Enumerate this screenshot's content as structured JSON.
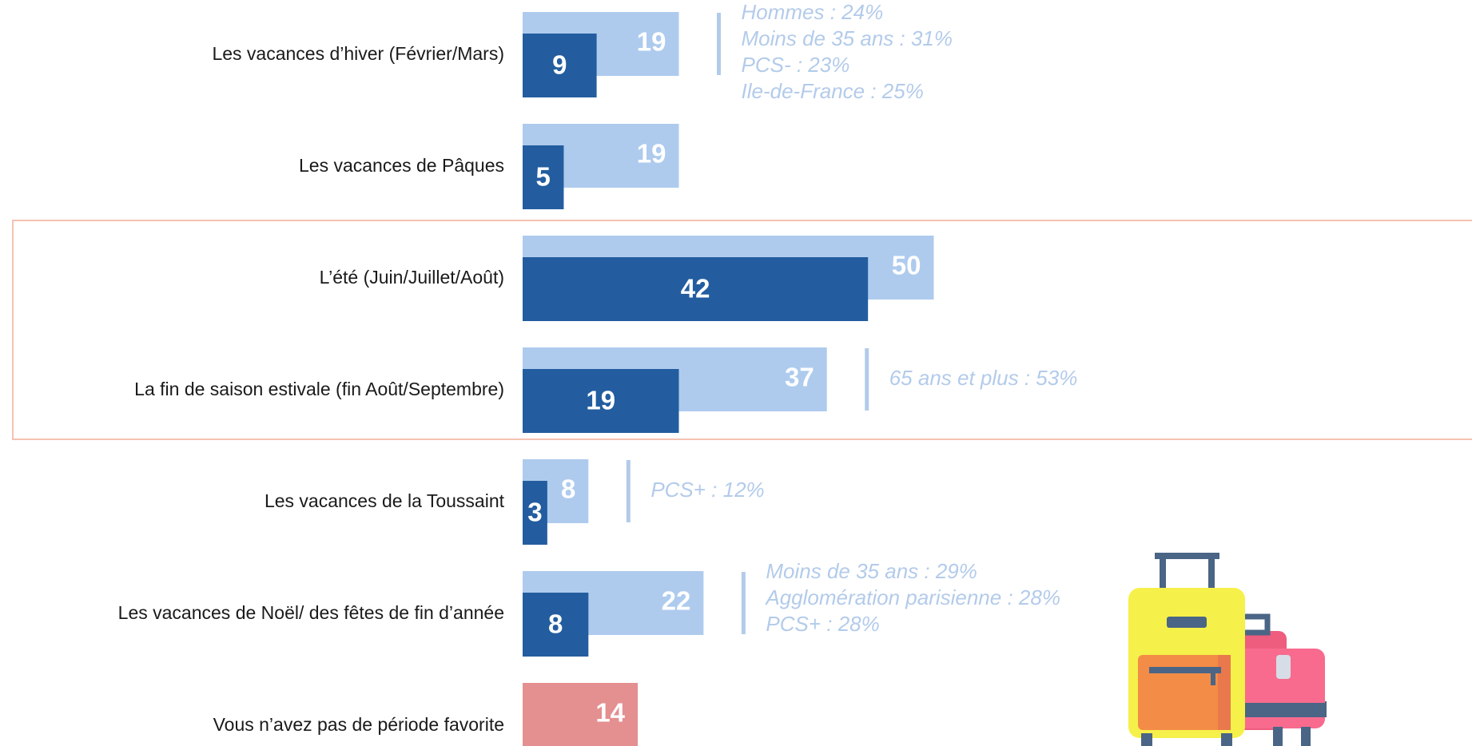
{
  "chart_data": {
    "type": "bar",
    "categories": [
      "Les vacances d’hiver (Février/Mars)",
      "Les vacances de Pâques",
      "L’été (Juin/Juillet/Août)",
      "La fin de saison estivale (fin Août/Septembre)",
      "Les vacances de la Toussaint",
      "Les vacances de Noël/ des fêtes de fin d’année",
      "Vous n’avez pas de période favorite"
    ],
    "series": [
      {
        "color": "#aecbee",
        "values": [
          19,
          19,
          50,
          37,
          8,
          22,
          null
        ]
      },
      {
        "color": "#e48f90",
        "values": [
          null,
          null,
          null,
          null,
          null,
          null,
          14
        ]
      },
      {
        "color": "#235d9f",
        "values": [
          9,
          5,
          42,
          19,
          3,
          8,
          null
        ]
      }
    ],
    "annotations": [
      [
        "Hommes : 24%",
        "Moins de 35 ans : 31%",
        "PCS- : 23%",
        "Ile-de-France : 25%"
      ],
      null,
      null,
      [
        "65 ans et plus : 53%"
      ],
      [
        "PCS+ : 12%"
      ],
      [
        "Moins de 35 ans : 29%",
        "Agglomération parisienne : 28%",
        "PCS+ : 28%"
      ],
      null
    ]
  }
}
